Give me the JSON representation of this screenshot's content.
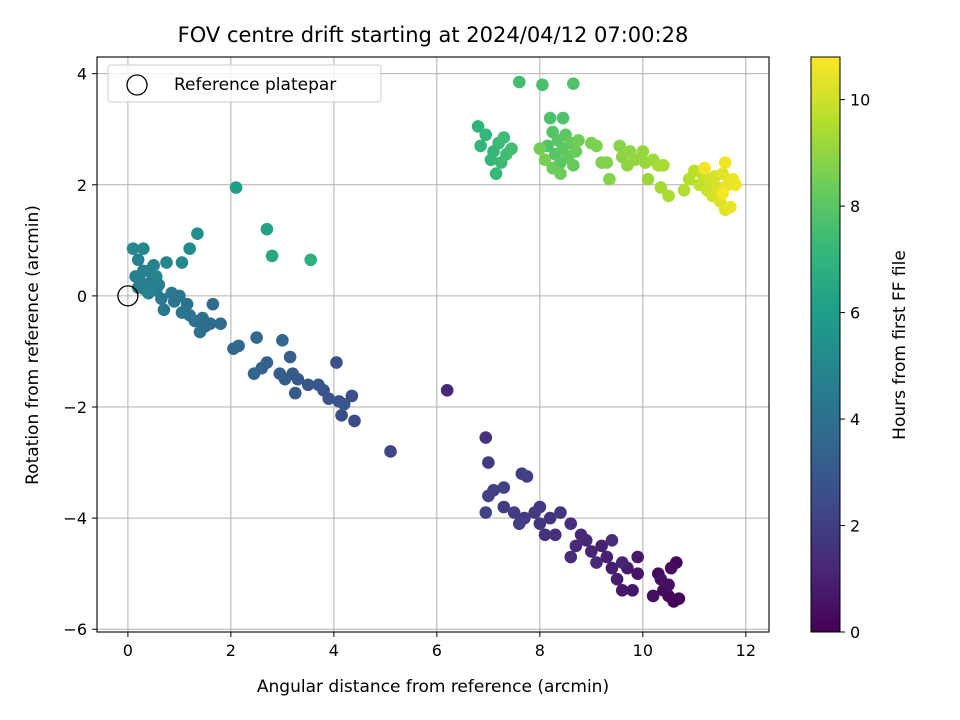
{
  "chart_data": {
    "type": "scatter",
    "title": "FOV centre drift starting at 2024/04/12 07:00:28",
    "xlabel": "Angular distance from reference (arcmin)",
    "ylabel": "Rotation from reference (arcmin)",
    "xlim": [
      -0.6,
      12.45
    ],
    "ylim": [
      -6.05,
      4.3
    ],
    "xticks": [
      0,
      2,
      4,
      6,
      8,
      10,
      12
    ],
    "yticks": [
      -6,
      -4,
      -2,
      0,
      2,
      4
    ],
    "grid": true,
    "legend": {
      "placement": "top-left",
      "entries": [
        "Reference platepar"
      ]
    },
    "reference_point": {
      "label": "Reference platepar",
      "x": 0,
      "y": 0
    },
    "colorbar": {
      "label": "Hours from first FF file",
      "colormap": "viridis",
      "min": 0,
      "max": 10.8,
      "ticks": [
        0,
        2,
        4,
        6,
        8,
        10
      ]
    },
    "series": [
      {
        "color_by": "hours",
        "points": [
          {
            "x": 10.7,
            "y": -5.45,
            "h": 0.05
          },
          {
            "x": 10.6,
            "y": -5.5,
            "h": 0.1
          },
          {
            "x": 10.5,
            "y": -5.4,
            "h": 0.15
          },
          {
            "x": 10.4,
            "y": -5.3,
            "h": 0.2
          },
          {
            "x": 10.65,
            "y": -4.8,
            "h": 0.25
          },
          {
            "x": 10.55,
            "y": -4.9,
            "h": 0.3
          },
          {
            "x": 10.3,
            "y": -5.0,
            "h": 0.35
          },
          {
            "x": 10.2,
            "y": -5.4,
            "h": 0.4
          },
          {
            "x": 10.5,
            "y": -5.2,
            "h": 0.45
          },
          {
            "x": 10.35,
            "y": -5.1,
            "h": 0.5
          },
          {
            "x": 9.9,
            "y": -5.0,
            "h": 0.6
          },
          {
            "x": 9.8,
            "y": -5.3,
            "h": 0.65
          },
          {
            "x": 9.6,
            "y": -5.3,
            "h": 0.7
          },
          {
            "x": 9.9,
            "y": -4.7,
            "h": 0.75
          },
          {
            "x": 9.7,
            "y": -4.9,
            "h": 0.8
          },
          {
            "x": 9.5,
            "y": -5.1,
            "h": 0.85
          },
          {
            "x": 9.4,
            "y": -4.9,
            "h": 0.9
          },
          {
            "x": 9.3,
            "y": -4.7,
            "h": 0.95
          },
          {
            "x": 9.2,
            "y": -4.5,
            "h": 1.0
          },
          {
            "x": 9.6,
            "y": -4.8,
            "h": 1.05
          },
          {
            "x": 9.0,
            "y": -4.6,
            "h": 1.1
          },
          {
            "x": 8.9,
            "y": -4.4,
            "h": 1.15
          },
          {
            "x": 9.1,
            "y": -4.8,
            "h": 1.2
          },
          {
            "x": 8.8,
            "y": -4.3,
            "h": 1.25
          },
          {
            "x": 8.7,
            "y": -4.5,
            "h": 1.3
          },
          {
            "x": 8.6,
            "y": -4.7,
            "h": 1.35
          },
          {
            "x": 9.4,
            "y": -4.4,
            "h": 1.4
          },
          {
            "x": 8.6,
            "y": -4.1,
            "h": 1.45
          },
          {
            "x": 8.3,
            "y": -4.3,
            "h": 1.5
          },
          {
            "x": 8.1,
            "y": -4.3,
            "h": 1.55
          },
          {
            "x": 8.2,
            "y": -4.0,
            "h": 1.6
          },
          {
            "x": 8.4,
            "y": -3.9,
            "h": 1.65
          },
          {
            "x": 8.0,
            "y": -4.1,
            "h": 1.7
          },
          {
            "x": 7.9,
            "y": -3.9,
            "h": 1.75
          },
          {
            "x": 8.0,
            "y": -3.8,
            "h": 1.8
          },
          {
            "x": 7.7,
            "y": -4.0,
            "h": 1.85
          },
          {
            "x": 7.5,
            "y": -3.9,
            "h": 1.9
          },
          {
            "x": 7.3,
            "y": -3.8,
            "h": 1.95
          },
          {
            "x": 7.6,
            "y": -4.1,
            "h": 2.0
          },
          {
            "x": 7.1,
            "y": -3.5,
            "h": 2.05
          },
          {
            "x": 7.0,
            "y": -3.6,
            "h": 2.1
          },
          {
            "x": 6.95,
            "y": -3.9,
            "h": 2.15
          },
          {
            "x": 6.2,
            "y": -1.7,
            "h": 1.2
          },
          {
            "x": 6.95,
            "y": -2.55,
            "h": 1.6
          },
          {
            "x": 7.0,
            "y": -3.0,
            "h": 1.9
          },
          {
            "x": 7.65,
            "y": -3.2,
            "h": 2.0
          },
          {
            "x": 7.75,
            "y": -3.25,
            "h": 2.05
          },
          {
            "x": 7.3,
            "y": -3.45,
            "h": 2.2
          },
          {
            "x": 5.1,
            "y": -2.8,
            "h": 2.3
          },
          {
            "x": 4.4,
            "y": -2.25,
            "h": 2.5
          },
          {
            "x": 4.15,
            "y": -2.15,
            "h": 2.55
          },
          {
            "x": 4.35,
            "y": -1.8,
            "h": 2.6
          },
          {
            "x": 4.05,
            "y": -1.2,
            "h": 2.65
          },
          {
            "x": 4.1,
            "y": -1.9,
            "h": 2.7
          },
          {
            "x": 3.9,
            "y": -1.85,
            "h": 2.75
          },
          {
            "x": 3.8,
            "y": -1.7,
            "h": 2.8
          },
          {
            "x": 3.7,
            "y": -1.6,
            "h": 2.85
          },
          {
            "x": 4.2,
            "y": -1.95,
            "h": 2.9
          },
          {
            "x": 3.5,
            "y": -1.6,
            "h": 2.95
          },
          {
            "x": 3.3,
            "y": -1.5,
            "h": 3.0
          },
          {
            "x": 3.2,
            "y": -1.4,
            "h": 3.05
          },
          {
            "x": 3.25,
            "y": -1.75,
            "h": 3.1
          },
          {
            "x": 3.15,
            "y": -1.1,
            "h": 3.15
          },
          {
            "x": 3.05,
            "y": -1.5,
            "h": 3.2
          },
          {
            "x": 2.95,
            "y": -1.4,
            "h": 3.25
          },
          {
            "x": 2.7,
            "y": -1.2,
            "h": 3.35
          },
          {
            "x": 2.6,
            "y": -1.3,
            "h": 3.4
          },
          {
            "x": 2.45,
            "y": -1.4,
            "h": 3.45
          },
          {
            "x": 3.0,
            "y": -0.8,
            "h": 3.5
          },
          {
            "x": 2.5,
            "y": -0.75,
            "h": 3.55
          },
          {
            "x": 2.15,
            "y": -0.9,
            "h": 3.6
          },
          {
            "x": 2.05,
            "y": -0.95,
            "h": 3.65
          },
          {
            "x": 1.8,
            "y": -0.5,
            "h": 3.7
          },
          {
            "x": 1.65,
            "y": -0.15,
            "h": 3.75
          },
          {
            "x": 1.6,
            "y": -0.5,
            "h": 3.8
          },
          {
            "x": 1.5,
            "y": -0.55,
            "h": 3.85
          },
          {
            "x": 1.45,
            "y": -0.4,
            "h": 3.9
          },
          {
            "x": 1.4,
            "y": -0.65,
            "h": 3.95
          },
          {
            "x": 1.3,
            "y": -0.45,
            "h": 4.0
          },
          {
            "x": 1.2,
            "y": -0.35,
            "h": 4.05
          },
          {
            "x": 1.15,
            "y": -0.15,
            "h": 4.1
          },
          {
            "x": 1.05,
            "y": -0.3,
            "h": 4.15
          },
          {
            "x": 1.0,
            "y": 0.0,
            "h": 4.2
          },
          {
            "x": 0.9,
            "y": -0.1,
            "h": 4.25
          },
          {
            "x": 0.85,
            "y": 0.05,
            "h": 4.3
          },
          {
            "x": 0.7,
            "y": -0.25,
            "h": 4.35
          },
          {
            "x": 0.65,
            "y": -0.05,
            "h": 4.4
          },
          {
            "x": 0.55,
            "y": 0.1,
            "h": 4.45
          },
          {
            "x": 0.45,
            "y": 0.25,
            "h": 4.5
          },
          {
            "x": 0.35,
            "y": 0.1,
            "h": 4.55
          },
          {
            "x": 0.3,
            "y": 0.45,
            "h": 4.6
          },
          {
            "x": 0.25,
            "y": 0.25,
            "h": 4.65
          },
          {
            "x": 0.15,
            "y": 0.35,
            "h": 4.7
          },
          {
            "x": 0.2,
            "y": 0.65,
            "h": 4.75
          },
          {
            "x": 0.4,
            "y": 0.45,
            "h": 4.8
          },
          {
            "x": 0.5,
            "y": 0.55,
            "h": 4.85
          },
          {
            "x": 0.55,
            "y": 0.35,
            "h": 4.9
          },
          {
            "x": 0.75,
            "y": 0.6,
            "h": 4.95
          },
          {
            "x": 0.1,
            "y": 0.85,
            "h": 5.0
          },
          {
            "x": 0.3,
            "y": 0.85,
            "h": 5.05
          },
          {
            "x": 1.05,
            "y": 0.6,
            "h": 5.1
          },
          {
            "x": 1.2,
            "y": 0.85,
            "h": 5.2
          },
          {
            "x": 1.35,
            "y": 1.12,
            "h": 5.3
          },
          {
            "x": 0.2,
            "y": 0.15,
            "h": 4.6
          },
          {
            "x": 0.6,
            "y": 0.2,
            "h": 4.7
          },
          {
            "x": 0.4,
            "y": 0.05,
            "h": 4.8
          },
          {
            "x": 2.1,
            "y": 1.95,
            "h": 6.0
          },
          {
            "x": 2.7,
            "y": 1.2,
            "h": 6.2
          },
          {
            "x": 2.8,
            "y": 0.72,
            "h": 6.5
          },
          {
            "x": 3.55,
            "y": 0.65,
            "h": 6.8
          },
          {
            "x": 6.8,
            "y": 3.05,
            "h": 7.0
          },
          {
            "x": 6.85,
            "y": 2.7,
            "h": 7.05
          },
          {
            "x": 6.95,
            "y": 2.9,
            "h": 7.1
          },
          {
            "x": 7.05,
            "y": 2.45,
            "h": 7.15
          },
          {
            "x": 7.1,
            "y": 2.6,
            "h": 7.2
          },
          {
            "x": 7.15,
            "y": 2.2,
            "h": 7.25
          },
          {
            "x": 7.2,
            "y": 2.75,
            "h": 7.3
          },
          {
            "x": 7.25,
            "y": 2.4,
            "h": 7.35
          },
          {
            "x": 7.3,
            "y": 2.85,
            "h": 7.4
          },
          {
            "x": 7.35,
            "y": 2.55,
            "h": 7.45
          },
          {
            "x": 7.45,
            "y": 2.65,
            "h": 7.5
          },
          {
            "x": 7.6,
            "y": 3.85,
            "h": 7.55
          },
          {
            "x": 8.05,
            "y": 3.8,
            "h": 7.65
          },
          {
            "x": 8.2,
            "y": 3.2,
            "h": 7.7
          },
          {
            "x": 8.45,
            "y": 3.2,
            "h": 7.75
          },
          {
            "x": 8.65,
            "y": 3.82,
            "h": 7.8
          },
          {
            "x": 8.15,
            "y": 2.7,
            "h": 7.8
          },
          {
            "x": 8.25,
            "y": 2.95,
            "h": 7.85
          },
          {
            "x": 8.3,
            "y": 2.55,
            "h": 7.9
          },
          {
            "x": 8.35,
            "y": 2.8,
            "h": 7.95
          },
          {
            "x": 8.4,
            "y": 2.4,
            "h": 8.0
          },
          {
            "x": 8.45,
            "y": 2.65,
            "h": 8.05
          },
          {
            "x": 8.5,
            "y": 2.9,
            "h": 8.1
          },
          {
            "x": 8.55,
            "y": 2.5,
            "h": 8.15
          },
          {
            "x": 8.6,
            "y": 2.75,
            "h": 8.2
          },
          {
            "x": 8.65,
            "y": 2.35,
            "h": 8.25
          },
          {
            "x": 8.7,
            "y": 2.6,
            "h": 8.3
          },
          {
            "x": 8.25,
            "y": 2.3,
            "h": 8.35
          },
          {
            "x": 8.4,
            "y": 2.2,
            "h": 8.4
          },
          {
            "x": 8.75,
            "y": 2.8,
            "h": 8.45
          },
          {
            "x": 8.0,
            "y": 2.65,
            "h": 8.5
          },
          {
            "x": 8.1,
            "y": 2.45,
            "h": 8.55
          },
          {
            "x": 9.0,
            "y": 2.75,
            "h": 8.6
          },
          {
            "x": 9.1,
            "y": 2.7,
            "h": 8.65
          },
          {
            "x": 9.2,
            "y": 2.4,
            "h": 8.7
          },
          {
            "x": 9.3,
            "y": 2.4,
            "h": 8.75
          },
          {
            "x": 9.35,
            "y": 2.1,
            "h": 8.8
          },
          {
            "x": 9.55,
            "y": 2.7,
            "h": 8.85
          },
          {
            "x": 9.6,
            "y": 2.5,
            "h": 8.9
          },
          {
            "x": 9.7,
            "y": 2.35,
            "h": 8.95
          },
          {
            "x": 9.75,
            "y": 2.6,
            "h": 9.0
          },
          {
            "x": 9.85,
            "y": 2.45,
            "h": 9.05
          },
          {
            "x": 10.0,
            "y": 2.6,
            "h": 9.1
          },
          {
            "x": 10.05,
            "y": 2.4,
            "h": 9.15
          },
          {
            "x": 10.1,
            "y": 2.1,
            "h": 9.2
          },
          {
            "x": 10.2,
            "y": 2.45,
            "h": 9.25
          },
          {
            "x": 10.3,
            "y": 2.35,
            "h": 9.3
          },
          {
            "x": 10.35,
            "y": 1.95,
            "h": 9.35
          },
          {
            "x": 10.4,
            "y": 2.35,
            "h": 9.4
          },
          {
            "x": 10.5,
            "y": 1.8,
            "h": 9.45
          },
          {
            "x": 10.8,
            "y": 1.9,
            "h": 9.55
          },
          {
            "x": 10.9,
            "y": 2.1,
            "h": 9.6
          },
          {
            "x": 11.0,
            "y": 2.25,
            "h": 9.7
          },
          {
            "x": 11.1,
            "y": 2.0,
            "h": 9.8
          },
          {
            "x": 11.15,
            "y": 2.2,
            "h": 9.9
          },
          {
            "x": 11.25,
            "y": 1.9,
            "h": 10.0
          },
          {
            "x": 11.3,
            "y": 2.1,
            "h": 10.05
          },
          {
            "x": 11.35,
            "y": 1.8,
            "h": 10.1
          },
          {
            "x": 11.4,
            "y": 2.15,
            "h": 10.15
          },
          {
            "x": 11.45,
            "y": 1.95,
            "h": 10.2
          },
          {
            "x": 11.5,
            "y": 1.7,
            "h": 10.25
          },
          {
            "x": 11.55,
            "y": 2.2,
            "h": 10.3
          },
          {
            "x": 11.6,
            "y": 1.55,
            "h": 10.35
          },
          {
            "x": 11.65,
            "y": 2.0,
            "h": 10.4
          },
          {
            "x": 11.7,
            "y": 1.6,
            "h": 10.45
          },
          {
            "x": 11.75,
            "y": 2.1,
            "h": 10.5
          },
          {
            "x": 11.8,
            "y": 2.0,
            "h": 10.55
          },
          {
            "x": 11.6,
            "y": 2.4,
            "h": 10.6
          },
          {
            "x": 11.2,
            "y": 2.3,
            "h": 10.65
          },
          {
            "x": 11.55,
            "y": 1.85,
            "h": 10.7
          }
        ]
      }
    ]
  }
}
